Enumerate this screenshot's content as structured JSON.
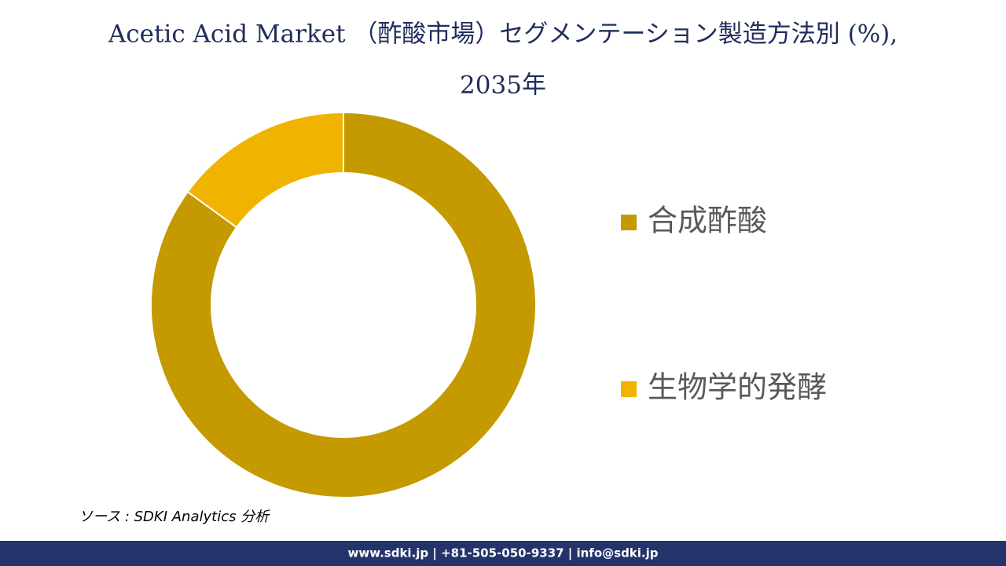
{
  "chart_data": {
    "type": "donut",
    "title": [
      "Acetic Acid Market （酢酸市場）セグメンテーション製造方法別 (%),",
      "2035年"
    ],
    "categories": [
      "合成酢酸",
      "生物学的発酵"
    ],
    "values": [
      85,
      15
    ],
    "colors": [
      "#c49a00",
      "#f0b400"
    ],
    "source": "ソース : SDKI Analytics 分析",
    "footer": "www.sdki.jp | +81-505-050-9337 | info@sdki.jp"
  }
}
